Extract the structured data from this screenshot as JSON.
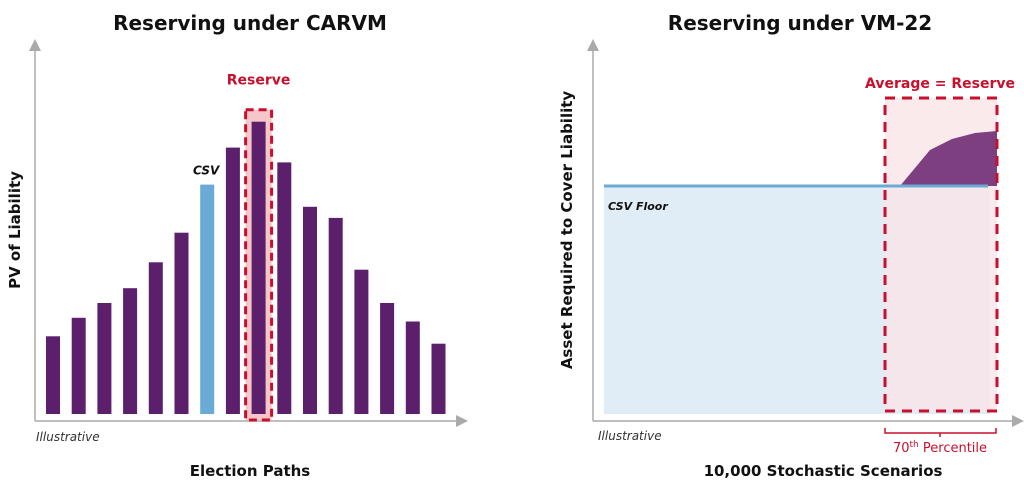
{
  "chart_data": [
    {
      "type": "bar",
      "title": "Reserving under CARVM",
      "xlabel": "Election Paths",
      "ylabel": "PV of Liability",
      "note": "Illustrative",
      "ylim": [
        0,
        100
      ],
      "grid": false,
      "values": [
        21,
        26,
        30,
        34,
        41,
        49,
        62,
        72,
        79,
        68,
        56,
        53,
        39,
        30,
        25,
        19
      ],
      "highlight_csv_index": 6,
      "highlight_reserve_index": 8,
      "annotations": {
        "csv": "CSV",
        "reserve": "Reserve"
      },
      "colors": {
        "bar": "#5b1f6b",
        "csv": "#6aaad6",
        "reserve": "#c8102e",
        "reserve_fill": "#f7c6c8"
      }
    },
    {
      "type": "area",
      "title": "Reserving under VM-22",
      "xlabel": "10,000 Stochastic Scenarios",
      "ylabel": "Asset Required to Cover Liability",
      "note": "Illustrative",
      "grid": false,
      "annotations": {
        "floor": "CSV Floor",
        "reserve": "Average = Reserve",
        "percentile_prefix": "70",
        "percentile_sup": "th",
        "percentile_suffix": " Percentile"
      },
      "colors": {
        "floor_area": "#e1edf6",
        "floor_line": "#6aaad6",
        "excess": "#7d3f80",
        "reserve": "#c8102e",
        "reserve_fill": "#f9e3e5"
      }
    }
  ]
}
